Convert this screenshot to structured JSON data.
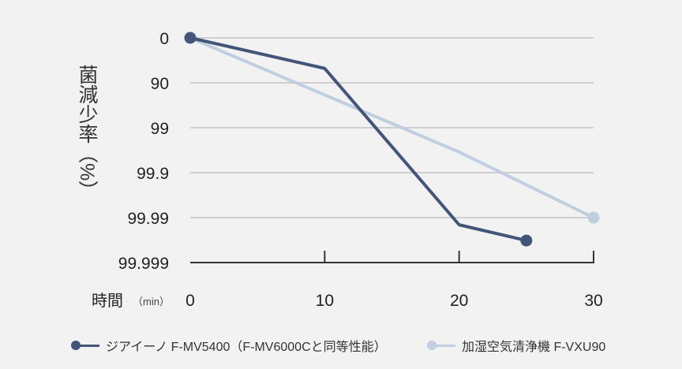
{
  "chart_data": {
    "type": "line",
    "title": "",
    "ylabel": "菌減少率（%）",
    "xlabel": "時間",
    "xlabel_unit": "（min）",
    "x_ticks": [
      "0",
      "10",
      "20",
      "30"
    ],
    "xlim": [
      0,
      30
    ],
    "y_ticks": [
      "0",
      "90",
      "99",
      "99.9",
      "99.99",
      "99.999"
    ],
    "y_scale": "log-reduction (tick index 0-5)",
    "ylim": [
      0,
      5
    ],
    "grid": true,
    "legend_position": "bottom",
    "series": [
      {
        "name": "ジアイーノ F-MV5400（F-MV6000Cと同等性能）",
        "color": "#44557a",
        "x": [
          0,
          10,
          20,
          25
        ],
        "y": [
          0,
          0.68,
          4.16,
          4.51
        ],
        "end_markers": true
      },
      {
        "name": "加湿空気清浄機 F-VXU90",
        "color": "#c0cfe0",
        "x": [
          0,
          20,
          30
        ],
        "y": [
          0,
          2.54,
          4.0
        ],
        "end_markers": true
      }
    ]
  }
}
